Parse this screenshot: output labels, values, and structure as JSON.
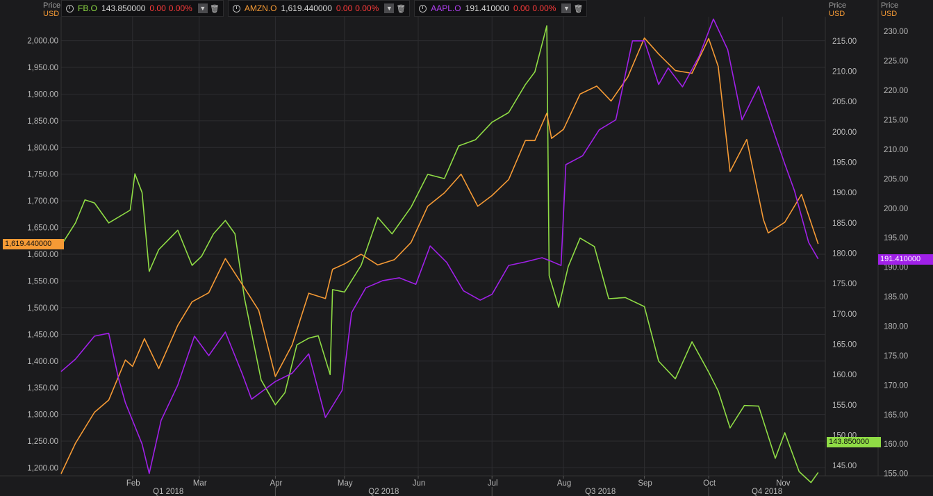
{
  "legend": [
    {
      "symbol": "FB.O",
      "value": "143.850000",
      "change": "0.00",
      "pct": "0.00%",
      "color": "#8fdc45"
    },
    {
      "symbol": "AMZN.O",
      "value": "1,619.440000",
      "change": "0.00",
      "pct": "0.00%",
      "color": "#f59a35"
    },
    {
      "symbol": "AAPL.O",
      "value": "191.410000",
      "change": "0.00",
      "pct": "0.00%",
      "color": "#a020e8"
    }
  ],
  "axes": {
    "left": {
      "price_label": "Price",
      "currency": "USD"
    },
    "right1": {
      "price_label": "Price",
      "currency": "USD"
    },
    "right2": {
      "price_label": "Price",
      "currency": "USD"
    }
  },
  "last_tags": {
    "amzn": "1,619.440000",
    "aapl": "191.410000",
    "fb": "143.850000"
  },
  "chart_data": {
    "type": "line",
    "x_labels": [
      "Feb",
      "Mar",
      "Apr",
      "May",
      "Jun",
      "Jul",
      "Aug",
      "Sep",
      "Oct",
      "Nov"
    ],
    "quarters": [
      "Q1 2018",
      "Q2 2018",
      "Q3 2018",
      "Q4 2018"
    ],
    "left_axis": {
      "series": "AMZN.O",
      "ylim": [
        1185,
        2045
      ],
      "ticks": [
        "1,200.00",
        "1,250.00",
        "1,300.00",
        "1,350.00",
        "1,400.00",
        "1,450.00",
        "1,500.00",
        "1,550.00",
        "1,600.00",
        "1,650.00",
        "1,700.00",
        "1,750.00",
        "1,800.00",
        "1,850.00",
        "1,900.00",
        "1,950.00",
        "2,000.00"
      ]
    },
    "right1_axis": {
      "series": "FB.O",
      "ylim": [
        143.3,
        219
      ],
      "ticks": [
        "145.00",
        "150.00",
        "155.00",
        "160.00",
        "165.00",
        "170.00",
        "175.00",
        "180.00",
        "185.00",
        "190.00",
        "195.00",
        "200.00",
        "205.00",
        "210.00",
        "215.00"
      ]
    },
    "right2_axis": {
      "series": "AAPL.O",
      "ylim": [
        154.6,
        232.5
      ],
      "ticks": [
        "155.00",
        "160.00",
        "165.00",
        "170.00",
        "175.00",
        "180.00",
        "185.00",
        "190.00",
        "195.00",
        "200.00",
        "205.00",
        "210.00",
        "215.00",
        "220.00",
        "225.00",
        "230.00"
      ]
    },
    "series": [
      {
        "name": "FB.O",
        "color": "#8fdc45",
        "axis": "right1",
        "x": [
          "2018-01-02",
          "2018-01-08",
          "2018-01-12",
          "2018-01-16",
          "2018-01-22",
          "2018-01-31",
          "2018-02-02",
          "2018-02-05",
          "2018-02-08",
          "2018-02-12",
          "2018-02-20",
          "2018-02-26",
          "2018-03-02",
          "2018-03-07",
          "2018-03-12",
          "2018-03-16",
          "2018-03-20",
          "2018-03-27",
          "2018-04-02",
          "2018-04-06",
          "2018-04-11",
          "2018-04-16",
          "2018-04-20",
          "2018-04-25",
          "2018-04-26",
          "2018-05-01",
          "2018-05-08",
          "2018-05-15",
          "2018-05-21",
          "2018-05-29",
          "2018-06-05",
          "2018-06-12",
          "2018-06-18",
          "2018-06-25",
          "2018-07-02",
          "2018-07-09",
          "2018-07-16",
          "2018-07-20",
          "2018-07-25",
          "2018-07-26",
          "2018-07-30",
          "2018-08-03",
          "2018-08-08",
          "2018-08-14",
          "2018-08-20",
          "2018-08-27",
          "2018-09-04",
          "2018-09-10",
          "2018-09-17",
          "2018-09-24",
          "2018-10-01",
          "2018-10-05",
          "2018-10-10",
          "2018-10-16",
          "2018-10-22",
          "2018-10-29",
          "2018-11-02",
          "2018-11-08",
          "2018-11-13",
          "2018-11-16"
        ],
        "y": [
          181.3,
          185.0,
          188.8,
          188.3,
          185.0,
          187.1,
          193.1,
          190.0,
          177.0,
          180.6,
          183.8,
          178.0,
          179.5,
          183.2,
          185.4,
          183.2,
          172.6,
          159.1,
          155.0,
          157.0,
          164.9,
          166.0,
          166.4,
          160.0,
          174.0,
          173.6,
          178.0,
          185.9,
          183.2,
          187.6,
          193.0,
          192.3,
          197.7,
          198.7,
          201.6,
          203.2,
          207.8,
          209.9,
          217.5,
          176.3,
          171.1,
          177.8,
          182.5,
          181.1,
          172.5,
          172.7,
          171.2,
          162.2,
          159.3,
          165.4,
          160.4,
          157.3,
          151.2,
          154.9,
          154.8,
          146.2,
          150.4,
          144.0,
          142.2,
          143.85
        ]
      },
      {
        "name": "AMZN.O",
        "color": "#f59a35",
        "axis": "left",
        "x": [
          "2018-01-02",
          "2018-01-08",
          "2018-01-16",
          "2018-01-22",
          "2018-01-29",
          "2018-02-01",
          "2018-02-06",
          "2018-02-12",
          "2018-02-20",
          "2018-02-26",
          "2018-03-05",
          "2018-03-12",
          "2018-03-19",
          "2018-03-26",
          "2018-04-02",
          "2018-04-09",
          "2018-04-16",
          "2018-04-23",
          "2018-04-26",
          "2018-05-01",
          "2018-05-08",
          "2018-05-15",
          "2018-05-22",
          "2018-05-29",
          "2018-06-05",
          "2018-06-12",
          "2018-06-19",
          "2018-06-26",
          "2018-07-02",
          "2018-07-09",
          "2018-07-16",
          "2018-07-20",
          "2018-07-25",
          "2018-07-27",
          "2018-08-01",
          "2018-08-08",
          "2018-08-15",
          "2018-08-21",
          "2018-08-28",
          "2018-09-04",
          "2018-09-10",
          "2018-09-17",
          "2018-09-24",
          "2018-10-01",
          "2018-10-05",
          "2018-10-10",
          "2018-10-17",
          "2018-10-24",
          "2018-10-26",
          "2018-11-02",
          "2018-11-09",
          "2018-11-16"
        ],
        "y": [
          1189.0,
          1246.0,
          1304.0,
          1327.0,
          1402.0,
          1390.0,
          1442.0,
          1386.0,
          1467.0,
          1511.0,
          1528.0,
          1592.0,
          1544.0,
          1495.0,
          1371.0,
          1430.0,
          1527.0,
          1517.0,
          1572.0,
          1582.0,
          1600.0,
          1580.0,
          1590.0,
          1622.0,
          1690.0,
          1715.0,
          1750.0,
          1690.0,
          1710.0,
          1740.0,
          1813.0,
          1813.0,
          1864.0,
          1817.0,
          1834.0,
          1900.0,
          1915.0,
          1887.0,
          1932.0,
          2005.0,
          1975.0,
          1944.0,
          1939.0,
          2004.0,
          1952.0,
          1755.0,
          1815.0,
          1665.0,
          1640.0,
          1660.0,
          1712.0,
          1619.44
        ]
      },
      {
        "name": "AAPL.O",
        "color": "#a020e8",
        "axis": "right2",
        "x": [
          "2018-01-02",
          "2018-01-08",
          "2018-01-16",
          "2018-01-22",
          "2018-01-26",
          "2018-01-29",
          "2018-02-05",
          "2018-02-08",
          "2018-02-13",
          "2018-02-20",
          "2018-02-27",
          "2018-03-05",
          "2018-03-12",
          "2018-03-19",
          "2018-03-23",
          "2018-04-02",
          "2018-04-09",
          "2018-04-16",
          "2018-04-23",
          "2018-04-30",
          "2018-05-04",
          "2018-05-10",
          "2018-05-17",
          "2018-05-24",
          "2018-05-31",
          "2018-06-06",
          "2018-06-13",
          "2018-06-20",
          "2018-06-27",
          "2018-07-02",
          "2018-07-09",
          "2018-07-16",
          "2018-07-23",
          "2018-07-27",
          "2018-07-31",
          "2018-08-02",
          "2018-08-09",
          "2018-08-16",
          "2018-08-23",
          "2018-08-30",
          "2018-09-04",
          "2018-09-10",
          "2018-09-14",
          "2018-09-20",
          "2018-09-27",
          "2018-10-03",
          "2018-10-09",
          "2018-10-15",
          "2018-10-22",
          "2018-10-29",
          "2018-11-02",
          "2018-11-06",
          "2018-11-12",
          "2018-11-16"
        ],
        "y": [
          172.3,
          174.4,
          178.3,
          178.8,
          171.3,
          167.0,
          160.0,
          155.0,
          164.0,
          170.0,
          178.3,
          175.0,
          179.0,
          172.0,
          167.6,
          170.6,
          172.0,
          175.3,
          164.5,
          169.1,
          182.3,
          186.5,
          187.7,
          188.2,
          187.1,
          193.6,
          190.8,
          186.0,
          184.4,
          185.4,
          190.3,
          190.9,
          191.6,
          190.98,
          190.3,
          207.4,
          208.9,
          213.3,
          215.0,
          228.4,
          228.4,
          221.0,
          223.8,
          220.6,
          225.8,
          232.1,
          226.9,
          215.0,
          220.7,
          212.2,
          207.5,
          203.0,
          194.2,
          191.41
        ]
      }
    ]
  }
}
